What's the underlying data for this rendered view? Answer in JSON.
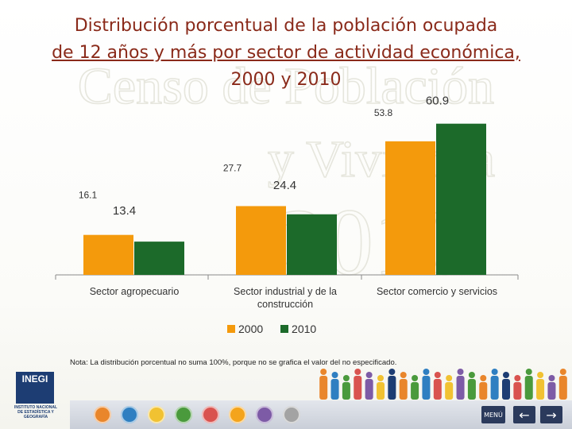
{
  "title": {
    "line1": "Distribución porcentual de la población ocupada",
    "line2": "de 12 años y más por sector de actividad económica,",
    "line3": "2000 y 2010"
  },
  "watermark": {
    "line1": "Censo de Población",
    "line2": "y Vivienda",
    "line3": "2010"
  },
  "chart_data": {
    "type": "bar",
    "categories": [
      "Sector agropecuario",
      "Sector industrial y de la construcción",
      "Sector comercio y servicios"
    ],
    "category_lines": [
      [
        "Sector agropecuario"
      ],
      [
        "Sector industrial y de la",
        "construcción"
      ],
      [
        "Sector comercio y servicios"
      ]
    ],
    "series": [
      {
        "name": "2000",
        "values": [
          16.1,
          27.7,
          53.8
        ],
        "color": "#f49a0c"
      },
      {
        "name": "2010",
        "values": [
          13.4,
          24.4,
          60.9
        ],
        "color": "#1c6a2a"
      }
    ],
    "value_labels": {
      "2000": [
        "16.1",
        "27.7",
        "53.8"
      ],
      "2010": [
        "13.4",
        "24.4",
        "60.9"
      ]
    },
    "ylim": [
      0,
      64
    ],
    "legend": "bottom",
    "grid": false
  },
  "note": "Nota: La distribución porcentual no suma 100%, porque no se grafica el valor del no especificado.",
  "logo": {
    "text": "INEGI",
    "caption": [
      "INSTITUTO NACIONAL",
      "DE ESTADÍSTICA Y GEOGRAFÍA"
    ]
  },
  "controls": {
    "menu_label": "MENÚ",
    "prev_label": "←",
    "next_label": "→"
  },
  "nav_icon_colors": [
    "#e9862b",
    "#2f7fc1",
    "#f1c232",
    "#4a9a3c",
    "#d9534f",
    "#f4a41c",
    "#7d5ba6",
    "#a3a3a3"
  ],
  "people_colors": [
    "#e9862b",
    "#2f7fc1",
    "#4a9a3c",
    "#d9534f",
    "#7d5ba6",
    "#f1c232",
    "#1d3d73",
    "#e9862b",
    "#4a9a3c",
    "#2f7fc1",
    "#d9534f",
    "#f1c232",
    "#7d5ba6",
    "#4a9a3c",
    "#e9862b",
    "#2f7fc1",
    "#1d3d73",
    "#d9534f",
    "#4a9a3c",
    "#f1c232",
    "#7d5ba6",
    "#e9862b"
  ]
}
